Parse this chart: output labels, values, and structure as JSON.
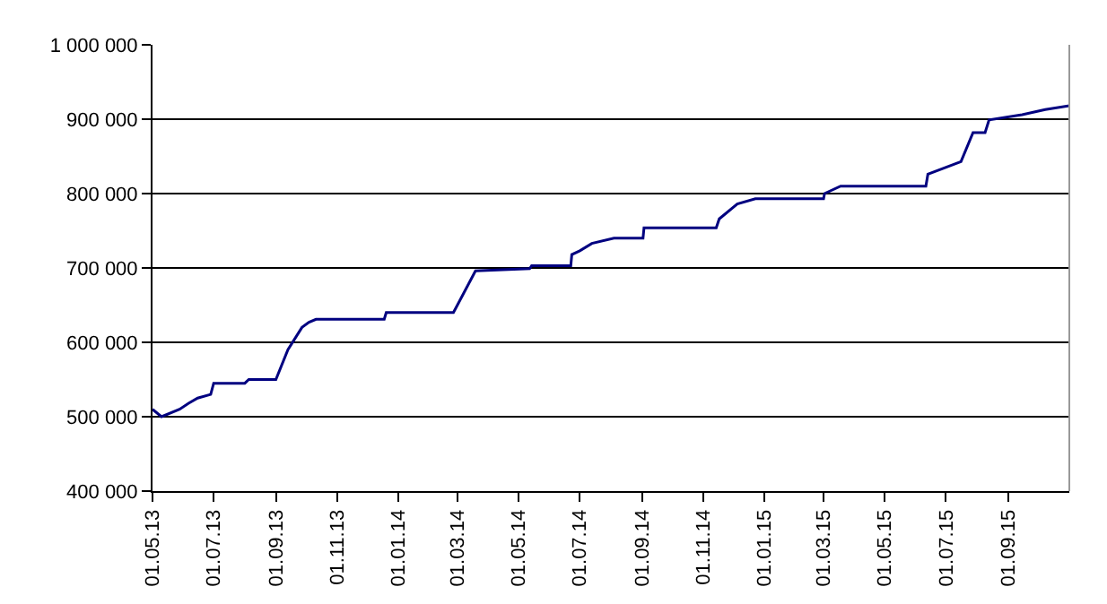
{
  "chart_data": {
    "type": "line",
    "line_style": "solid",
    "marker": "none",
    "grid": "y",
    "x": [
      "2013-05-01",
      "2013-05-10",
      "2013-05-28",
      "2013-06-06",
      "2013-06-15",
      "2013-06-28",
      "2013-07-01",
      "2013-08-01",
      "2013-08-05",
      "2013-09-01",
      "2013-09-13",
      "2013-09-27",
      "2013-10-04",
      "2013-10-11",
      "2013-12-18",
      "2013-12-20",
      "2014-02-25",
      "2014-03-19",
      "2014-05-12",
      "2014-05-14",
      "2014-06-22",
      "2014-06-23",
      "2014-07-01",
      "2014-07-13",
      "2014-08-04",
      "2014-09-02",
      "2014-09-03",
      "2014-11-14",
      "2014-11-17",
      "2014-12-05",
      "2014-12-23",
      "2015-03-01",
      "2015-03-02",
      "2015-03-18",
      "2015-06-11",
      "2015-06-13",
      "2015-07-16",
      "2015-07-28",
      "2015-08-09",
      "2015-08-13",
      "2015-09-15",
      "2015-10-08",
      "2015-11-01"
    ],
    "series": [
      {
        "color": "#000080",
        "values": [
          510000,
          500000,
          510000,
          518000,
          525000,
          530000,
          545000,
          545000,
          550000,
          550000,
          590000,
          620000,
          627000,
          631000,
          631000,
          640000,
          640000,
          696000,
          699000,
          703000,
          703000,
          718000,
          723000,
          733000,
          740000,
          740000,
          754000,
          754000,
          766000,
          786000,
          793000,
          793000,
          800000,
          810000,
          810000,
          826000,
          843000,
          882000,
          882000,
          899000,
          906000,
          913000,
          918000
        ]
      }
    ],
    "xlim": [
      "2013-05-01",
      "2015-11-01"
    ],
    "xticks": [
      {
        "value": "2013-05-01",
        "label": "01.05.13"
      },
      {
        "value": "2013-07-01",
        "label": "01.07.13"
      },
      {
        "value": "2013-09-01",
        "label": "01.09.13"
      },
      {
        "value": "2013-11-01",
        "label": "01.11.13"
      },
      {
        "value": "2014-01-01",
        "label": "01.01.14"
      },
      {
        "value": "2014-03-01",
        "label": "01.03.14"
      },
      {
        "value": "2014-05-01",
        "label": "01.05.14"
      },
      {
        "value": "2014-07-01",
        "label": "01.07.14"
      },
      {
        "value": "2014-09-01",
        "label": "01.09.14"
      },
      {
        "value": "2014-11-01",
        "label": "01.11.14"
      },
      {
        "value": "2015-01-01",
        "label": "01.01.15"
      },
      {
        "value": "2015-03-01",
        "label": "01.03.15"
      },
      {
        "value": "2015-05-01",
        "label": "01.05.15"
      },
      {
        "value": "2015-07-01",
        "label": "01.07.15"
      },
      {
        "value": "2015-09-01",
        "label": "01.09.15"
      }
    ],
    "ylim": [
      400000,
      1000000
    ],
    "yticks": [
      {
        "value": 400000,
        "label": "400 000"
      },
      {
        "value": 500000,
        "label": "500 000"
      },
      {
        "value": 600000,
        "label": "600 000"
      },
      {
        "value": 700000,
        "label": "700 000"
      },
      {
        "value": 800000,
        "label": "800 000"
      },
      {
        "value": 900000,
        "label": "900 000"
      },
      {
        "value": 1000000,
        "label": "1 000 000"
      }
    ]
  }
}
